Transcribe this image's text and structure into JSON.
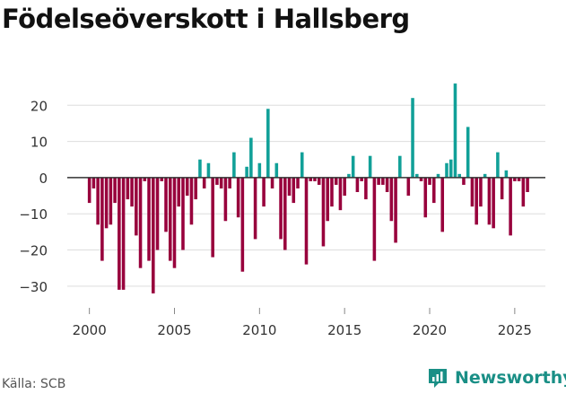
{
  "title": "Födelseöverskott i Hallsberg",
  "source": "Källa: SCB",
  "brand": "Newsworthy",
  "colors": {
    "positive": "#11a098",
    "negative": "#98003c",
    "brand": "#1a8f86"
  },
  "chart_data": {
    "type": "bar",
    "title": "Födelseöverskott i Hallsberg",
    "xlabel": "",
    "ylabel": "",
    "xlim": [
      1998.7,
      2026.8
    ],
    "ylim": [
      -36,
      28
    ],
    "yticks": [
      -30,
      -20,
      -10,
      0,
      10,
      20
    ],
    "ytick_labels": [
      "−30",
      "−20",
      "−10",
      "0",
      "10",
      "20"
    ],
    "xticks": [
      2000,
      2005,
      2010,
      2015,
      2020,
      2025
    ],
    "xtick_labels": [
      "2000",
      "2005",
      "2010",
      "2015",
      "2020",
      "2025"
    ],
    "period": "monthly (quarterly bins shown)",
    "x": [
      2000.0,
      2000.25,
      2000.5,
      2000.75,
      2001.0,
      2001.25,
      2001.5,
      2001.75,
      2002.0,
      2002.25,
      2002.5,
      2002.75,
      2003.0,
      2003.25,
      2003.5,
      2003.75,
      2004.0,
      2004.25,
      2004.5,
      2004.75,
      2005.0,
      2005.25,
      2005.5,
      2005.75,
      2006.0,
      2006.25,
      2006.5,
      2006.75,
      2007.0,
      2007.25,
      2007.5,
      2007.75,
      2008.0,
      2008.25,
      2008.5,
      2008.75,
      2009.0,
      2009.25,
      2009.5,
      2009.75,
      2010.0,
      2010.25,
      2010.5,
      2010.75,
      2011.0,
      2011.25,
      2011.5,
      2011.75,
      2012.0,
      2012.25,
      2012.5,
      2012.75,
      2013.0,
      2013.25,
      2013.5,
      2013.75,
      2014.0,
      2014.25,
      2014.5,
      2014.75,
      2015.0,
      2015.25,
      2015.5,
      2015.75,
      2016.0,
      2016.25,
      2016.5,
      2016.75,
      2017.0,
      2017.25,
      2017.5,
      2017.75,
      2018.0,
      2018.25,
      2018.5,
      2018.75,
      2019.0,
      2019.25,
      2019.5,
      2019.75,
      2020.0,
      2020.25,
      2020.5,
      2020.75,
      2021.0,
      2021.25,
      2021.5,
      2021.75,
      2022.0,
      2022.25,
      2022.5,
      2022.75,
      2023.0,
      2023.25,
      2023.5,
      2023.75,
      2024.0,
      2024.25,
      2024.5,
      2024.75,
      2025.0,
      2025.25,
      2025.5,
      2025.75
    ],
    "values": [
      -7,
      -3,
      -13,
      -23,
      -14,
      -13,
      -7,
      -31,
      -31,
      -6,
      -8,
      -16,
      -25,
      -1,
      -23,
      -32,
      -20,
      -1,
      -15,
      -23,
      -25,
      -8,
      -20,
      -5,
      -13,
      -6,
      5,
      -3,
      4,
      -22,
      -2,
      -3,
      -12,
      -3,
      7,
      -11,
      -26,
      3,
      11,
      -17,
      4,
      -8,
      19,
      -3,
      4,
      -17,
      -20,
      -5,
      -7,
      -3,
      7,
      -24,
      -1,
      -1,
      -2,
      -19,
      -12,
      -8,
      -2,
      -9,
      -5,
      1,
      6,
      -4,
      -1,
      -6,
      6,
      -23,
      -2,
      -2,
      -4,
      -12,
      -18,
      6,
      0,
      -5,
      22,
      1,
      -1,
      -11,
      -2,
      -7,
      1,
      -15,
      4,
      5,
      26,
      1,
      -2,
      14,
      -8,
      -13,
      -8,
      1,
      -13,
      -14,
      7,
      -6,
      2,
      -16,
      -1,
      -1,
      -8,
      -4
    ]
  }
}
